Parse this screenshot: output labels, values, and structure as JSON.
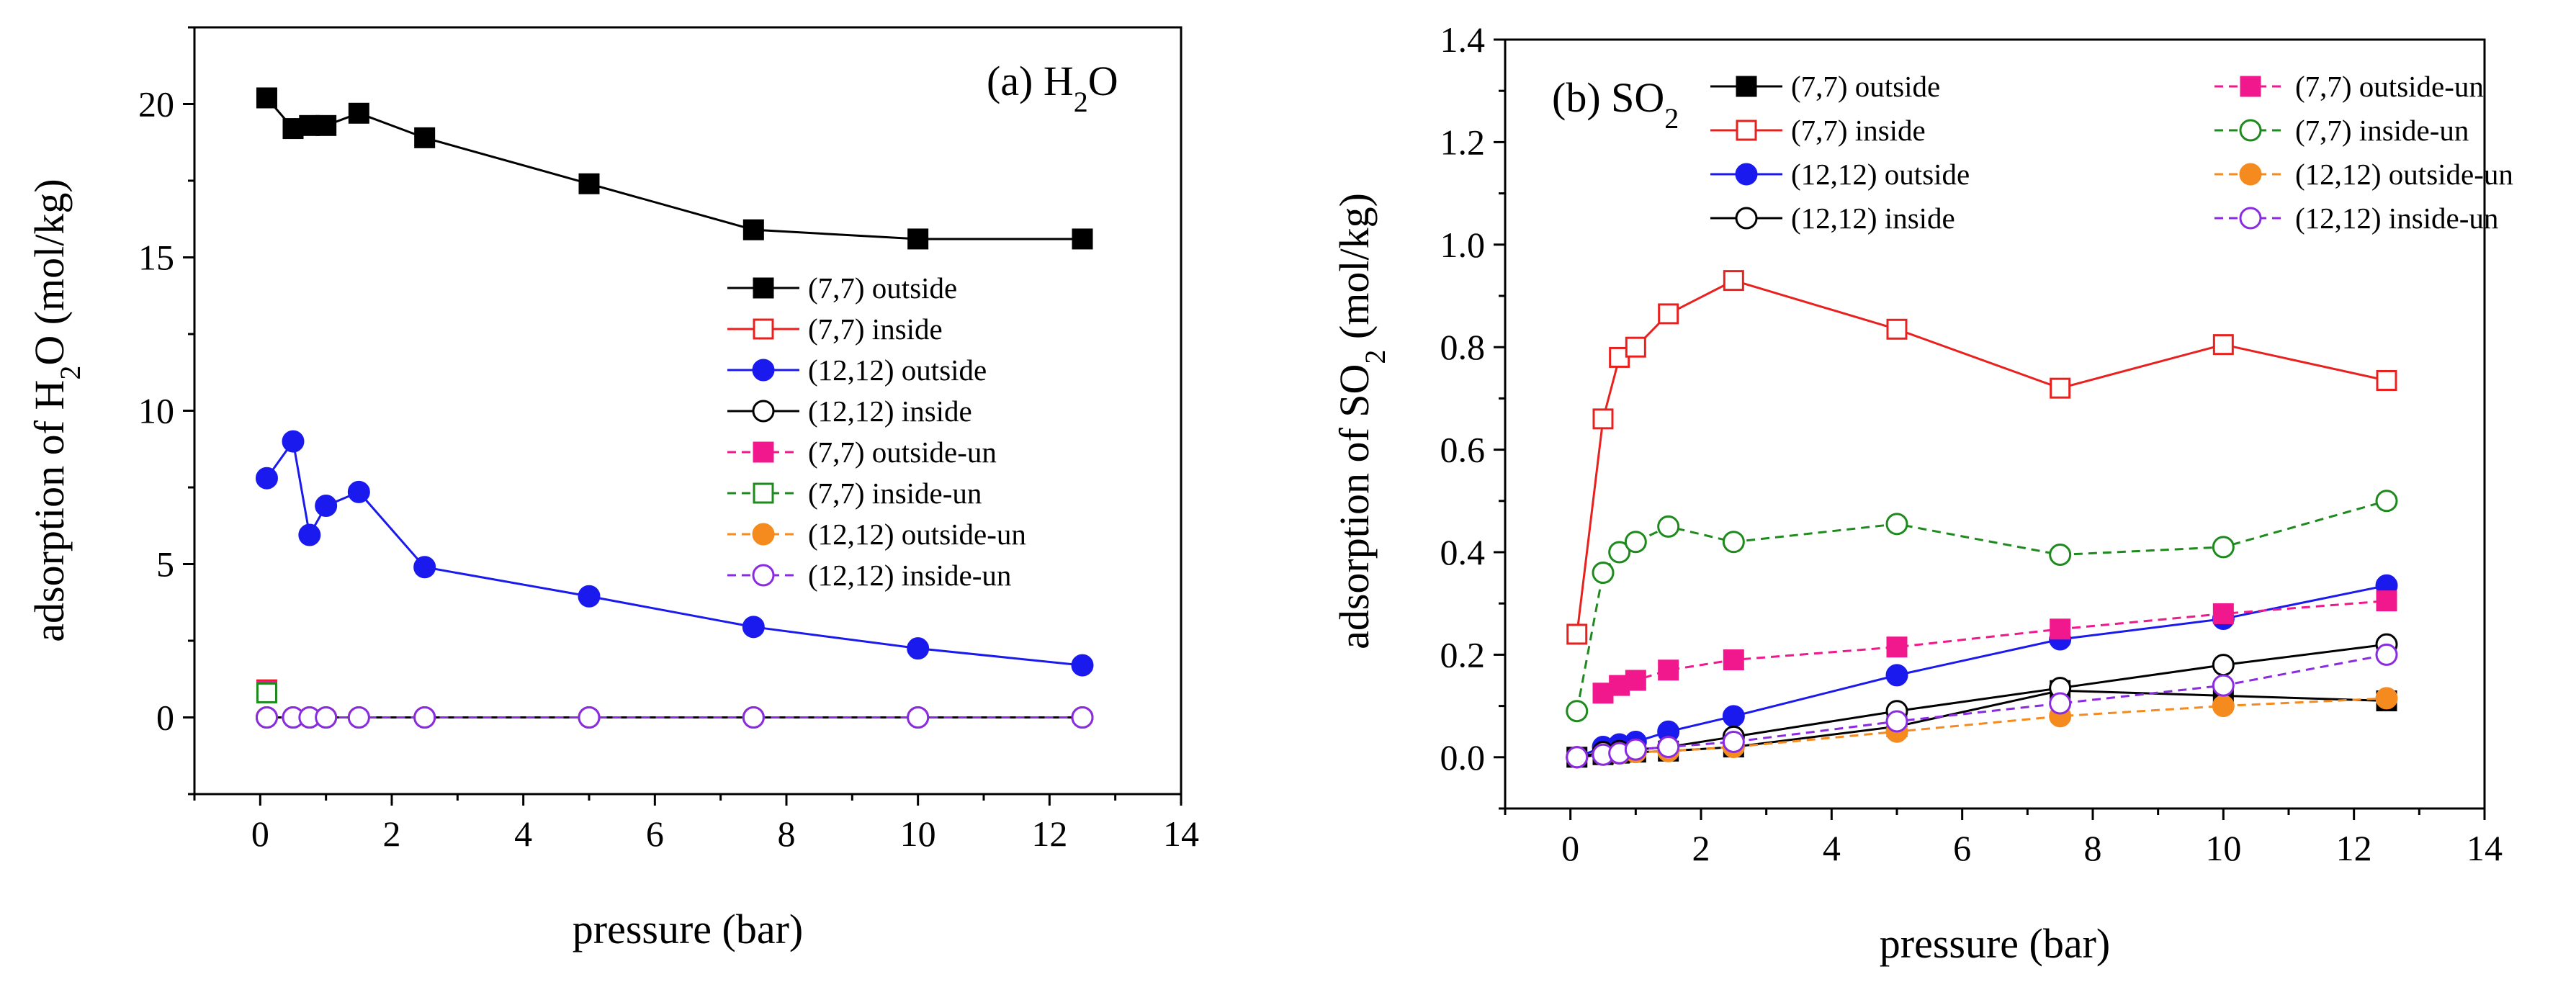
{
  "chart_data": [
    {
      "type": "line",
      "title": "(a) H",
      "title_sub": "2",
      "title_tail": "O",
      "xlabel": "pressure (bar)",
      "ylabel": "adsorption of H",
      "ylabel_sub": "2",
      "ylabel_tail": "O (mol/kg)",
      "xlim": [
        -1,
        14
      ],
      "ylim": [
        -2.5,
        22.5
      ],
      "xticks": [
        0,
        2,
        4,
        6,
        8,
        10,
        12,
        14
      ],
      "xtick_labels": [
        "0",
        "2",
        "4",
        "6",
        "8",
        "10",
        "12",
        "14"
      ],
      "yticks": [
        0,
        5,
        10,
        15,
        20
      ],
      "ytick_labels": [
        "0",
        "5",
        "10",
        "15",
        "20"
      ],
      "legend_position": "center-right",
      "series": [
        {
          "name": "(7,7) outside",
          "color": "#000000",
          "marker": "square-filled",
          "dash": "solid",
          "x": [
            0.1,
            0.5,
            0.75,
            1.0,
            1.5,
            2.5,
            5.0,
            7.5,
            10.0,
            12.5
          ],
          "y": [
            20.2,
            19.2,
            19.3,
            19.3,
            19.7,
            18.9,
            17.4,
            15.9,
            15.6,
            15.6
          ]
        },
        {
          "name": "(7,7) inside",
          "color": "#e8211f",
          "marker": "square-open",
          "dash": "solid",
          "x": [
            0.1
          ],
          "y": [
            0.9
          ]
        },
        {
          "name": "(12,12) outside",
          "color": "#1a1aee",
          "marker": "circle-filled",
          "dash": "solid",
          "x": [
            0.1,
            0.5,
            0.75,
            1.0,
            1.5,
            2.5,
            5.0,
            7.5,
            10.0,
            12.5
          ],
          "y": [
            7.8,
            9.0,
            5.95,
            6.9,
            7.35,
            4.9,
            3.95,
            2.95,
            2.25,
            1.7
          ]
        },
        {
          "name": "(12,12) inside",
          "color": "#000000",
          "marker": "circle-open",
          "dash": "solid",
          "x": [
            0.1,
            0.5,
            0.75,
            1.0,
            1.5,
            2.5,
            5.0,
            7.5,
            10.0,
            12.5
          ],
          "y": [
            0,
            0,
            0,
            0,
            0,
            0,
            0,
            0,
            0,
            0
          ]
        },
        {
          "name": "(7,7) outside-un",
          "color": "#f0188c",
          "marker": "square-filled",
          "dash": "dashed",
          "x": [
            0.1
          ],
          "y": [
            0.85
          ]
        },
        {
          "name": "(7,7) inside-un",
          "color": "#1e8a1e",
          "marker": "square-open",
          "dash": "dashed",
          "x": [
            0.1
          ],
          "y": [
            0.8
          ]
        },
        {
          "name": "(12,12) outside-un",
          "color": "#f58a1f",
          "marker": "circle-filled",
          "dash": "dashed",
          "x": [
            0.1,
            0.5,
            0.75,
            1.0,
            1.5,
            2.5,
            5.0,
            7.5,
            10.0,
            12.5
          ],
          "y": [
            0,
            0,
            0,
            0,
            0,
            0,
            0,
            0,
            0,
            0
          ]
        },
        {
          "name": "(12,12) inside-un",
          "color": "#8a2be2",
          "marker": "circle-open",
          "dash": "dashed",
          "x": [
            0.1,
            0.5,
            0.75,
            1.0,
            1.5,
            2.5,
            5.0,
            7.5,
            10.0,
            12.5
          ],
          "y": [
            0,
            0,
            0,
            0,
            0,
            0,
            0,
            0,
            0,
            0
          ]
        }
      ]
    },
    {
      "type": "line",
      "title": "(b) SO",
      "title_sub": "2",
      "title_tail": "",
      "xlabel": "pressure (bar)",
      "ylabel": "adsorption of SO",
      "ylabel_sub": "2",
      "ylabel_tail": " (mol/kg)",
      "xlim": [
        -1,
        14
      ],
      "ylim": [
        -0.1,
        1.4
      ],
      "xticks": [
        0,
        2,
        4,
        6,
        8,
        10,
        12,
        14
      ],
      "xtick_labels": [
        "0",
        "2",
        "4",
        "6",
        "8",
        "10",
        "12",
        "14"
      ],
      "yticks": [
        0.0,
        0.2,
        0.4,
        0.6,
        0.8,
        1.0,
        1.2,
        1.4
      ],
      "ytick_labels": [
        "0.0",
        "0.2",
        "0.4",
        "0.6",
        "0.8",
        "1.0",
        "1.2",
        "1.4"
      ],
      "legend_position": "top-right",
      "series": [
        {
          "name": "(7,7) outside",
          "color": "#000000",
          "marker": "square-filled",
          "dash": "solid",
          "x": [
            0.1,
            0.5,
            0.75,
            1.0,
            1.5,
            2.5,
            5.0,
            7.5,
            10.0,
            12.5
          ],
          "y": [
            0.0,
            0.005,
            0.008,
            0.01,
            0.012,
            0.02,
            0.06,
            0.13,
            0.12,
            0.11
          ]
        },
        {
          "name": "(7,7) inside",
          "color": "#e8211f",
          "marker": "square-open",
          "dash": "solid",
          "x": [
            0.1,
            0.5,
            0.75,
            1.0,
            1.5,
            2.5,
            5.0,
            7.5,
            10.0,
            12.5
          ],
          "y": [
            0.24,
            0.66,
            0.78,
            0.8,
            0.865,
            0.93,
            0.835,
            0.72,
            0.805,
            0.735
          ]
        },
        {
          "name": "(12,12) outside",
          "color": "#1a1aee",
          "marker": "circle-filled",
          "dash": "solid",
          "x": [
            0.1,
            0.5,
            0.75,
            1.0,
            1.5,
            2.5,
            5.0,
            7.5,
            10.0,
            12.5
          ],
          "y": [
            0.0,
            0.02,
            0.025,
            0.03,
            0.05,
            0.08,
            0.16,
            0.23,
            0.27,
            0.335
          ]
        },
        {
          "name": "(12,12) inside",
          "color": "#000000",
          "marker": "circle-open",
          "dash": "solid",
          "x": [
            0.1,
            0.5,
            0.75,
            1.0,
            1.5,
            2.5,
            5.0,
            7.5,
            10.0,
            12.5
          ],
          "y": [
            0.0,
            0.01,
            0.012,
            0.015,
            0.02,
            0.04,
            0.09,
            0.135,
            0.18,
            0.22
          ]
        },
        {
          "name": "(7,7) outside-un",
          "color": "#f0188c",
          "marker": "square-filled",
          "dash": "dashed",
          "x": [
            0.5,
            0.75,
            1.0,
            1.5,
            2.5,
            5.0,
            7.5,
            10.0,
            12.5
          ],
          "y": [
            0.125,
            0.14,
            0.15,
            0.17,
            0.19,
            0.215,
            0.25,
            0.28,
            0.305
          ]
        },
        {
          "name": "(7,7) inside-un",
          "color": "#1e8a1e",
          "marker": "circle-open",
          "dash": "dashed",
          "x": [
            0.1,
            0.5,
            0.75,
            1.0,
            1.5,
            2.5,
            5.0,
            7.5,
            10.0,
            12.5
          ],
          "y": [
            0.09,
            0.36,
            0.4,
            0.42,
            0.45,
            0.42,
            0.455,
            0.395,
            0.41,
            0.5
          ]
        },
        {
          "name": "(12,12) outside-un",
          "color": "#f58a1f",
          "marker": "circle-filled",
          "dash": "dashed",
          "x": [
            0.1,
            0.5,
            0.75,
            1.0,
            1.5,
            2.5,
            5.0,
            7.5,
            10.0,
            12.5
          ],
          "y": [
            0.0,
            0.005,
            0.007,
            0.01,
            0.012,
            0.02,
            0.05,
            0.08,
            0.1,
            0.115
          ]
        },
        {
          "name": "(12,12) inside-un",
          "color": "#8a2be2",
          "marker": "circle-open",
          "dash": "dashed",
          "x": [
            0.1,
            0.5,
            0.75,
            1.0,
            1.5,
            2.5,
            5.0,
            7.5,
            10.0,
            12.5
          ],
          "y": [
            0.0,
            0.005,
            0.008,
            0.015,
            0.02,
            0.03,
            0.07,
            0.105,
            0.14,
            0.2
          ]
        }
      ]
    }
  ]
}
